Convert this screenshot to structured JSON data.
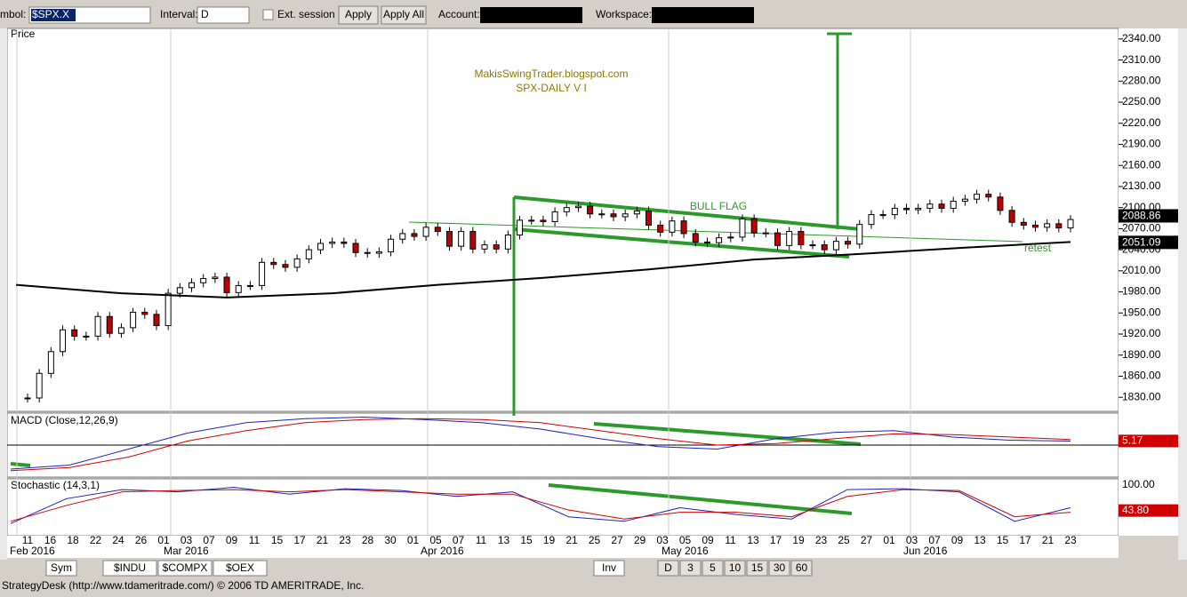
{
  "toolbar": {
    "symbol_label": "mbol:",
    "symbol": "$SPX.X",
    "interval_label": "Interval:",
    "interval": "D",
    "ext_session": "Ext. session",
    "apply": "Apply",
    "apply_all": "Apply All",
    "account_label": "Account:",
    "workspace_label": "Workspace:"
  },
  "price_panel": {
    "title": "Price",
    "watermark": [
      "MakisSwingTrader.blogspot.com",
      "SPX-DAILY  V I"
    ],
    "annotations": {
      "flag": "BULL FLAG",
      "retest": "retest"
    },
    "ylim": [
      1810,
      2355
    ],
    "yticks": [
      {
        "value": 2340,
        "label": "2340.00"
      },
      {
        "value": 2310,
        "label": "2310.00"
      },
      {
        "value": 2280,
        "label": "2280.00"
      },
      {
        "value": 2250,
        "label": "2250.00"
      },
      {
        "value": 2220,
        "label": "2220.00"
      },
      {
        "value": 2190,
        "label": "2190.00"
      },
      {
        "value": 2160,
        "label": "2160.00"
      },
      {
        "value": 2130,
        "label": "2130.00"
      },
      {
        "value": 2100,
        "label": "2100.00"
      },
      {
        "value": 2070,
        "label": "2070.00"
      },
      {
        "value": 2040,
        "label": "2040.00"
      },
      {
        "value": 2010,
        "label": "2010.00"
      },
      {
        "value": 1980,
        "label": "1980.00"
      },
      {
        "value": 1950,
        "label": "1950.00"
      },
      {
        "value": 1920,
        "label": "1920.00"
      },
      {
        "value": 1890,
        "label": "1890.00"
      },
      {
        "value": 1860,
        "label": "1860.00"
      },
      {
        "value": 1830,
        "label": "1830.00"
      }
    ],
    "last_price": {
      "value": 2088.86,
      "label": "2088.86"
    },
    "ma_price": {
      "value": 2051.09,
      "label": "2051.09"
    },
    "closes": [
      1829,
      1864,
      1895,
      1926,
      1917,
      1917,
      1945,
      1921,
      1929,
      1951,
      1948,
      1932,
      1978,
      1986,
      1993,
      1999,
      2001,
      1979,
      1989,
      1989,
      2022,
      2019,
      2015,
      2027,
      2040,
      2049,
      2051,
      2049,
      2036,
      2035,
      2037,
      2055,
      2063,
      2059,
      2072,
      2066,
      2045,
      2066,
      2041,
      2047,
      2041,
      2061,
      2082,
      2082,
      2080,
      2094,
      2100,
      2102,
      2091,
      2091,
      2087,
      2091,
      2095,
      2075,
      2065,
      2081,
      2063,
      2051,
      2050,
      2057,
      2058,
      2084,
      2064,
      2064,
      2046,
      2066,
      2047,
      2047,
      2040,
      2052,
      2048,
      2076,
      2090,
      2090,
      2099,
      2097,
      2099,
      2105,
      2099,
      2109,
      2112,
      2119,
      2115,
      2096,
      2079,
      2075,
      2072,
      2077,
      2071,
      2083
    ],
    "ma": [
      1990,
      1978,
      1972,
      1978,
      1990,
      2000,
      2012,
      2026,
      2034,
      2043,
      2051
    ]
  },
  "macd_panel": {
    "title": "MACD (Close,12,26,9)",
    "ylim": [
      -40,
      40
    ],
    "last": {
      "value": 5.17,
      "label": "5.17"
    },
    "macd": [
      -30,
      -25,
      -5,
      15,
      28,
      33,
      35,
      32,
      28,
      20,
      8,
      -2,
      -5,
      8,
      16,
      18,
      10,
      6,
      5
    ],
    "signal": [
      -32,
      -28,
      -15,
      5,
      18,
      28,
      32,
      33,
      32,
      28,
      18,
      8,
      0,
      2,
      8,
      14,
      13,
      10,
      7
    ]
  },
  "stoch_panel": {
    "title": "Stochastic (14,3,1)",
    "ylim": [
      0,
      100
    ],
    "top": {
      "value": 100,
      "label": "100.00"
    },
    "last": {
      "value": 43.8,
      "label": "43.80"
    },
    "k": [
      15,
      70,
      90,
      85,
      95,
      80,
      92,
      88,
      75,
      85,
      30,
      20,
      50,
      35,
      25,
      90,
      92,
      85,
      20,
      50
    ],
    "d": [
      20,
      55,
      85,
      88,
      90,
      85,
      90,
      85,
      80,
      80,
      45,
      25,
      40,
      40,
      30,
      75,
      90,
      88,
      30,
      40
    ]
  },
  "dates": [
    "11",
    "16",
    "18",
    "22",
    "24",
    "26",
    "01",
    "03",
    "07",
    "09",
    "11",
    "15",
    "17",
    "21",
    "23",
    "28",
    "30",
    "01",
    "05",
    "07",
    "11",
    "13",
    "15",
    "19",
    "21",
    "25",
    "27",
    "29",
    "03",
    "05",
    "09",
    "11",
    "13",
    "17",
    "19",
    "23",
    "25",
    "27",
    "01",
    "03",
    "07",
    "09",
    "13",
    "15",
    "17",
    "21",
    "23"
  ],
  "months": [
    "Feb 2016",
    "Mar 2016",
    "Apr 2016",
    "May 2016",
    "Jun 2016"
  ],
  "tabs": [
    "Sym",
    "$INDU",
    "$COMPX",
    "$OEX"
  ],
  "inv": "Inv",
  "periods": [
    "D",
    "3",
    "5",
    "10",
    "15",
    "30",
    "60"
  ],
  "status": "StrategyDesk (http://www.tdameritrade.com/) © 2006 TD AMERITRADE, Inc."
}
